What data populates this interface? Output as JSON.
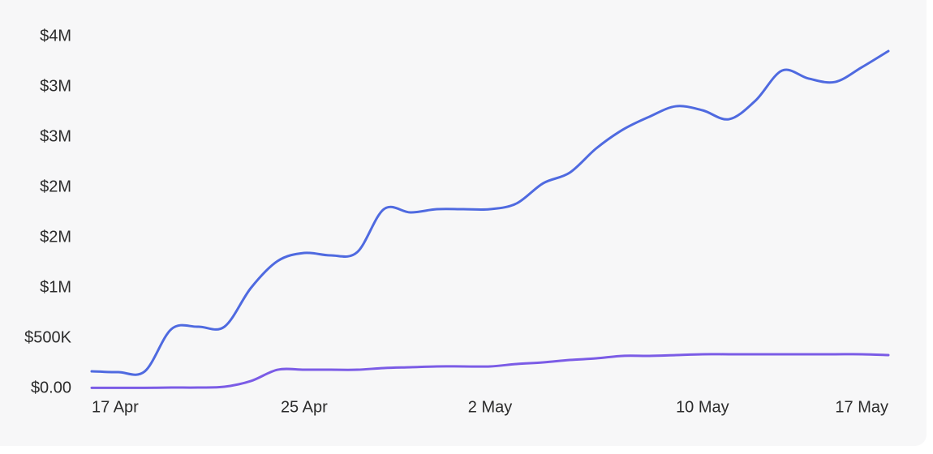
{
  "chart_data": {
    "type": "line",
    "categories": [
      "17 Apr",
      null,
      null,
      null,
      null,
      null,
      null,
      null,
      "25 Apr",
      null,
      null,
      null,
      null,
      null,
      null,
      "2 May",
      null,
      null,
      null,
      null,
      null,
      null,
      null,
      "10 May",
      null,
      null,
      null,
      null,
      null,
      null,
      "17 May"
    ],
    "series": [
      {
        "color": "#4f6ae0",
        "values": [
          169000,
          161000,
          169000,
          589000,
          613000,
          613000,
          1000000,
          1266000,
          1347000,
          1323000,
          1355000,
          1782000,
          1750000,
          1782000,
          1782000,
          1782000,
          1839000,
          2040000,
          2145000,
          2387000,
          2573000,
          2702000,
          2806000,
          2766000,
          2677000,
          2863000,
          3161000,
          3081000,
          3048000,
          3194000,
          3355000
        ]
      },
      {
        "color": "#7b5ce6",
        "values": [
          5000,
          5000,
          5000,
          8000,
          8000,
          16000,
          73000,
          185000,
          185000,
          185000,
          185000,
          202000,
          210000,
          218000,
          218000,
          218000,
          242000,
          258000,
          282000,
          298000,
          323000,
          323000,
          331000,
          339000,
          339000,
          339000,
          339000,
          339000,
          339000,
          339000,
          331000
        ]
      }
    ],
    "ylim": [
      0,
      3500000
    ],
    "yticks": [
      {
        "value": 0,
        "label": "$0.00"
      },
      {
        "value": 500000,
        "label": "$500K"
      },
      {
        "value": 1000000,
        "label": "$1M"
      },
      {
        "value": 1500000,
        "label": "$2M"
      },
      {
        "value": 2000000,
        "label": "$2M"
      },
      {
        "value": 2500000,
        "label": "$3M"
      },
      {
        "value": 3000000,
        "label": "$3M"
      },
      {
        "value": 3500000,
        "label": "$4M"
      }
    ],
    "grid": false
  }
}
